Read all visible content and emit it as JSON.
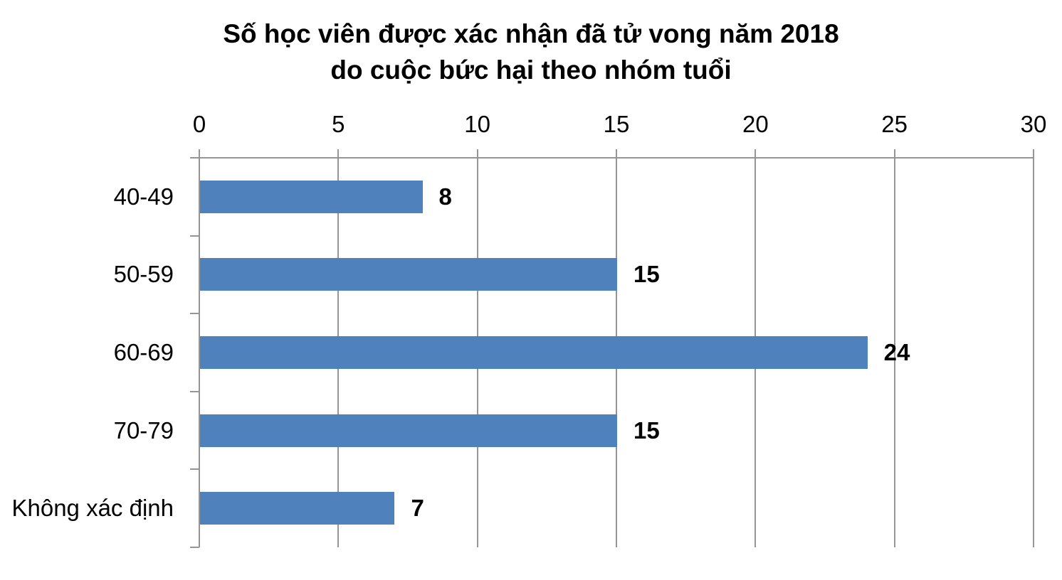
{
  "chart_data": {
    "type": "bar",
    "orientation": "horizontal",
    "title_lines": [
      "Số học viên được xác nhận đã tử vong năm 2018",
      "do cuộc bức hại theo nhóm tuổi"
    ],
    "categories": [
      "40-49",
      "50-59",
      "60-69",
      "70-79",
      "Không xác định"
    ],
    "values": [
      8,
      15,
      24,
      15,
      7
    ],
    "data_labels": [
      "8",
      "15",
      "24",
      "15",
      "7"
    ],
    "x_ticks": [
      "0",
      "5",
      "10",
      "15",
      "20",
      "25",
      "30"
    ],
    "xlim": [
      0,
      30
    ],
    "xlabel": "",
    "ylabel": "",
    "grid": true,
    "legend": false,
    "axis_position": "top",
    "colors": {
      "bar": "#4F81BD",
      "gridline": "#969696",
      "axis": "#969696",
      "text": "#000000"
    }
  }
}
